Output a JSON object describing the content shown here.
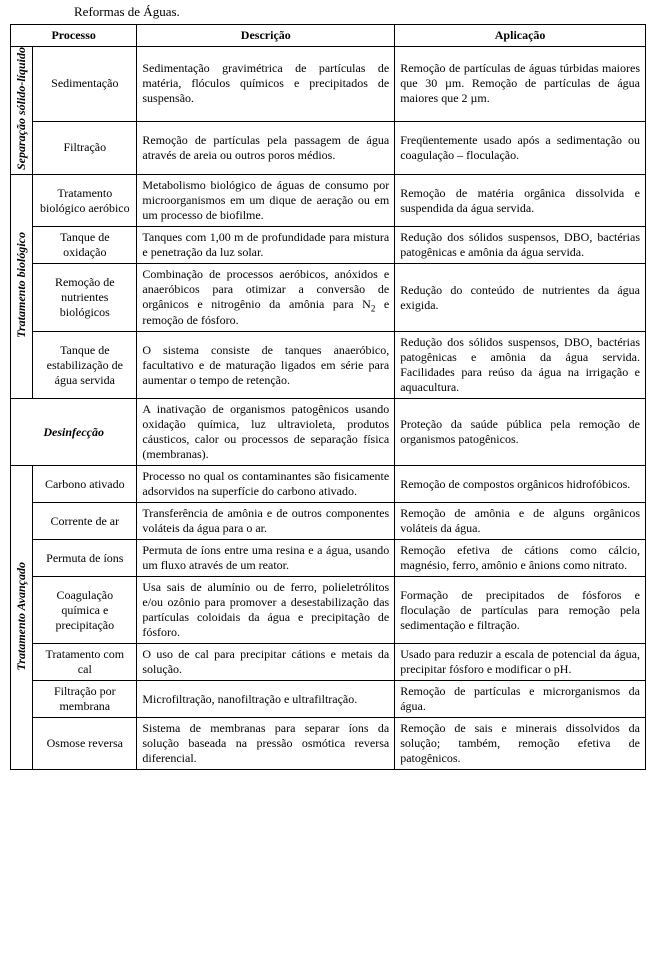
{
  "caption": "Reformas de Águas.",
  "headers": {
    "processo": "Processo",
    "descricao": "Descrição",
    "aplicacao": "Aplicação"
  },
  "groups": {
    "sep": "Separação sólido-líquido",
    "bio": "Tratamento biológico",
    "des": "Desinfecção",
    "adv": "Tratamento Avançado"
  },
  "rows": {
    "sedimentacao": {
      "proc": "Sedimentação",
      "desc": "Sedimentação gravimétrica de partículas de matéria, flóculos químicos e precipitados de suspensão.",
      "appl": "Remoção de partículas de águas túrbidas maiores que 30 µm. Remoção de partículas de água maiores que 2 µm."
    },
    "filtracao": {
      "proc": "Filtração",
      "desc": "Remoção de partículas pela passagem de água através de areia ou outros poros médios.",
      "appl": "Freqüentemente usado após a sedimentação ou coagulação – floculação."
    },
    "aerobico": {
      "proc": "Tratamento biológico aeróbico",
      "desc": "Metabolismo biológico de águas de consumo por microorganismos em um dique de aeração ou em um processo de biofilme.",
      "appl": "Remoção de matéria orgânica dissolvida e suspendida da água servida."
    },
    "oxidacao": {
      "proc": "Tanque de oxidação",
      "desc": "Tanques com 1,00 m de profundidade para mistura e penetração da luz solar.",
      "appl": "Redução dos sólidos suspensos, DBO, bactérias patogênicas e amônia da água servida."
    },
    "nutrientes": {
      "proc": "Remoção de nutrientes biológicos",
      "desc_pre": "Combinação de processos aeróbicos, anóxidos e anaeróbicos para otimizar a conversão de orgânicos e nitrogênio da amônia para N",
      "desc_sub": "2",
      "desc_post": " e remoção de fósforo.",
      "appl": "Redução do conteúdo de nutrientes da água exigida."
    },
    "estabilizacao": {
      "proc": "Tanque de estabilização de água servida",
      "desc": "O sistema consiste de tanques anaeróbico, facultativo e de maturação ligados em série para aumentar o tempo de retenção.",
      "appl": "Redução dos sólidos suspensos, DBO, bactérias patogênicas e amônia da água servida. Facilidades para reúso da água na irrigação e aquacultura."
    },
    "desinfeccao": {
      "desc": "A inativação de organismos patogênicos usando oxidação química, luz ultravioleta, produtos cáusticos, calor ou processos de separação física (membranas).",
      "appl": "Proteção da saúde pública pela remoção de organismos patogênicos."
    },
    "carbono": {
      "proc": "Carbono ativado",
      "desc": "Processo no qual os contaminantes são fisicamente adsorvidos na superfície do carbono ativado.",
      "appl": "Remoção de compostos orgânicos hidrofóbicos."
    },
    "corrente": {
      "proc": "Corrente de ar",
      "desc": "Transferência de amônia e de outros componentes voláteis da água para o ar.",
      "appl": "Remoção de amônia e de alguns orgânicos voláteis da água."
    },
    "permuta": {
      "proc": "Permuta de íons",
      "desc": "Permuta de íons entre uma resina e a água, usando um fluxo através de um reator.",
      "appl": "Remoção efetiva de cátions como cálcio, magnésio, ferro, amônio e ânions como nitrato."
    },
    "coagulacao": {
      "proc": "Coagulação química e precipitação",
      "desc": "Usa sais de alumínio ou de ferro, polieletrólitos e/ou ozônio para promover a desestabilização das partículas coloidais da água e precipitação de fósforo.",
      "appl": "Formação de precipitados de fósforos e floculação de partículas para remoção pela sedimentação e filtração."
    },
    "cal": {
      "proc": "Tratamento com cal",
      "desc": "O uso de cal para precipitar cátions e metais da solução.",
      "appl": "Usado para reduzir a escala de potencial da água, precipitar fósforo e modificar o pH."
    },
    "membrana": {
      "proc": "Filtração por membrana",
      "desc": "Microfiltração, nanofiltração e ultrafiltração.",
      "appl": "Remoção de partículas e microrganismos da água."
    },
    "osmose": {
      "proc": "Osmose reversa",
      "desc": "Sistema de membranas para separar íons da solução baseada na pressão osmótica reversa diferencial.",
      "appl": "Remoção de sais e minerais dissolvidos da solução; também, remoção efetiva de patogênicos."
    }
  }
}
